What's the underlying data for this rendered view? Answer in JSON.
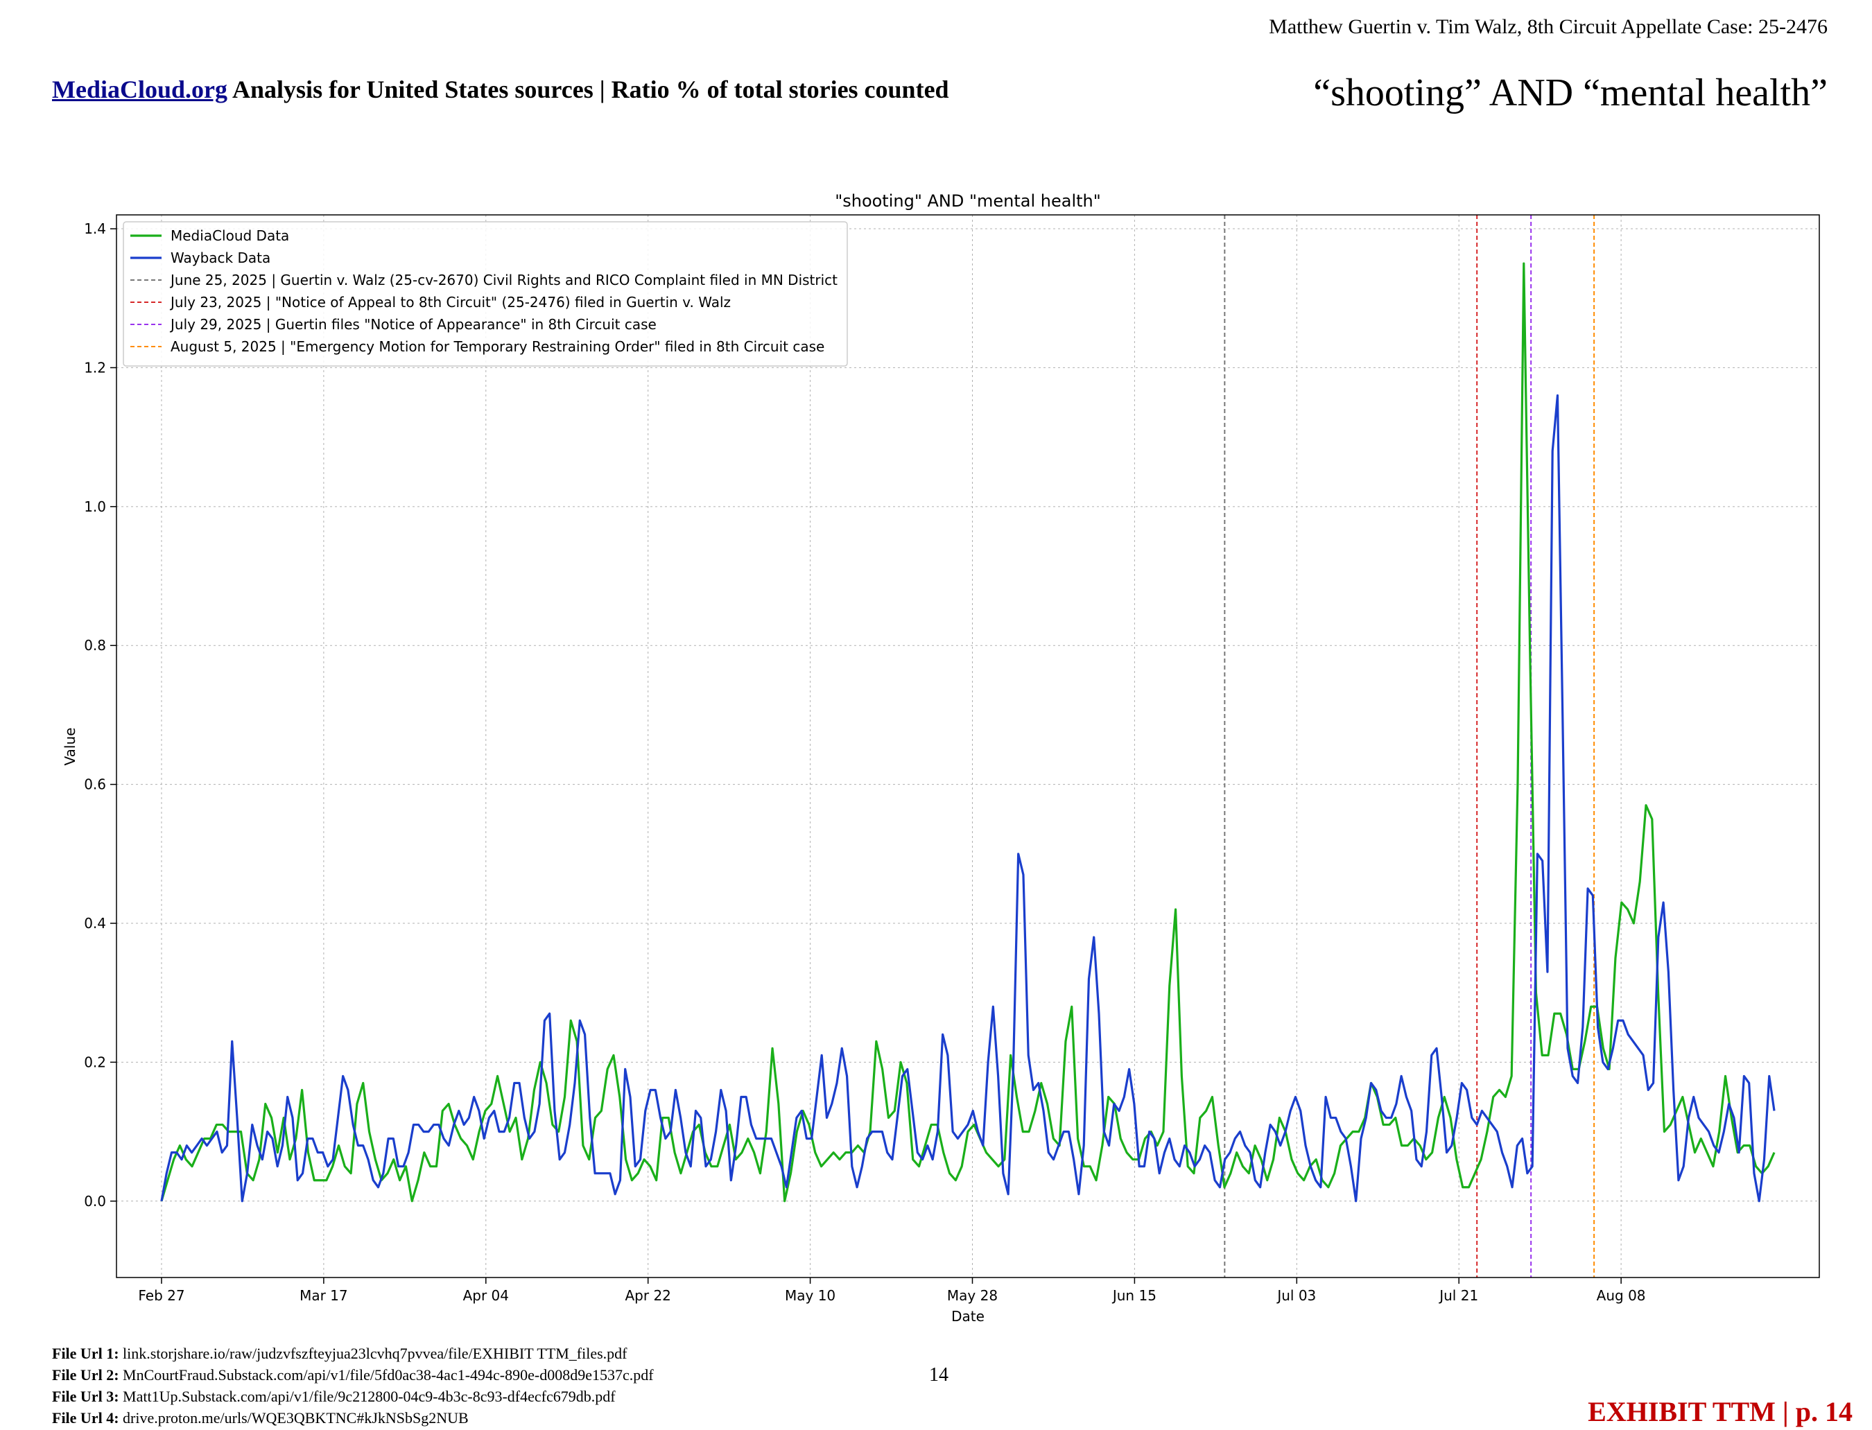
{
  "header": {
    "case_caption": "Matthew Guertin v. Tim Walz, 8th Circuit Appellate Case: 25-2476",
    "title_link": "MediaCloud.org",
    "title_rest": " Analysis for United States sources | Ratio % of total stories counted",
    "query_title": "“shooting” AND “mental health”"
  },
  "footer": {
    "file_urls": [
      {
        "label": "File Url 1:",
        "value": " link.storjshare.io/raw/judzvfszfteyjua23lcvhq7pvvea/file/EXHIBIT TTM_files.pdf"
      },
      {
        "label": "File Url 2:",
        "value": " MnCourtFraud.Substack.com/api/v1/file/5fd0ac38-4ac1-494c-890e-d008d9e1537c.pdf"
      },
      {
        "label": "File Url 3:",
        "value": " Matt1Up.Substack.com/api/v1/file/9c212800-04c9-4b3c-8c93-df4ecfc679db.pdf"
      },
      {
        "label": "File Url 4:",
        "value": " drive.proton.me/urls/WQE3QBKTNC#kJkNSbSg2NUB"
      }
    ],
    "page_number": "14",
    "exhibit_label": "EXHIBIT TTM | p. 14"
  },
  "chart_data": {
    "type": "line",
    "title": "\"shooting\" AND \"mental health\"",
    "xlabel": "Date",
    "ylabel": "Value",
    "x_start": "2025-02-27",
    "x_end": "2025-08-25",
    "xlim": [
      "2025-02-22",
      "2025-08-30"
    ],
    "ylim": [
      -0.11,
      1.42
    ],
    "x_ticks": [
      {
        "date": "2025-02-27",
        "label": "Feb 27"
      },
      {
        "date": "2025-03-17",
        "label": "Mar 17"
      },
      {
        "date": "2025-04-04",
        "label": "Apr 04"
      },
      {
        "date": "2025-04-22",
        "label": "Apr 22"
      },
      {
        "date": "2025-05-10",
        "label": "May 10"
      },
      {
        "date": "2025-05-28",
        "label": "May 28"
      },
      {
        "date": "2025-06-15",
        "label": "Jun 15"
      },
      {
        "date": "2025-07-03",
        "label": "Jul 03"
      },
      {
        "date": "2025-07-21",
        "label": "Jul 21"
      },
      {
        "date": "2025-08-08",
        "label": "Aug 08"
      }
    ],
    "y_ticks": [
      {
        "value": 0.0,
        "label": "0.0"
      },
      {
        "value": 0.2,
        "label": "0.2"
      },
      {
        "value": 0.4,
        "label": "0.4"
      },
      {
        "value": 0.6,
        "label": "0.6"
      },
      {
        "value": 0.8,
        "label": "0.8"
      },
      {
        "value": 1.0,
        "label": "1.0"
      },
      {
        "value": 1.2,
        "label": "1.2"
      },
      {
        "value": 1.4,
        "label": "1.4"
      }
    ],
    "grid": true,
    "legend_position": "top-left",
    "series": [
      {
        "name": "MediaCloud Data",
        "color": "#1aaf1a",
        "values": [
          0.0,
          0.03,
          0.06,
          0.08,
          0.06,
          0.05,
          0.07,
          0.09,
          0.09,
          0.11,
          0.11,
          0.1,
          0.1,
          0.1,
          0.04,
          0.03,
          0.06,
          0.14,
          0.12,
          0.07,
          0.12,
          0.06,
          0.09,
          0.16,
          0.07,
          0.03,
          0.03,
          0.03,
          0.05,
          0.08,
          0.05,
          0.04,
          0.14,
          0.17,
          0.1,
          0.06,
          0.03,
          0.04,
          0.06,
          0.03,
          0.05,
          0.0,
          0.03,
          0.07,
          0.05,
          0.05,
          0.13,
          0.14,
          0.11,
          0.09,
          0.08,
          0.06,
          0.1,
          0.13,
          0.14,
          0.18,
          0.14,
          0.1,
          0.12,
          0.06,
          0.09,
          0.16,
          0.2,
          0.17,
          0.11,
          0.1,
          0.15,
          0.26,
          0.23,
          0.08,
          0.06,
          0.12,
          0.13,
          0.19,
          0.21,
          0.15,
          0.06,
          0.03,
          0.04,
          0.06,
          0.05,
          0.03,
          0.12,
          0.12,
          0.07,
          0.04,
          0.07,
          0.1,
          0.11,
          0.07,
          0.05,
          0.05,
          0.08,
          0.11,
          0.06,
          0.07,
          0.09,
          0.07,
          0.04,
          0.1,
          0.22,
          0.14,
          0.0,
          0.04,
          0.1,
          0.13,
          0.11,
          0.07,
          0.05,
          0.06,
          0.07,
          0.06,
          0.07,
          0.07,
          0.08,
          0.07,
          0.1,
          0.23,
          0.19,
          0.12,
          0.13,
          0.2,
          0.17,
          0.06,
          0.05,
          0.08,
          0.11,
          0.11,
          0.07,
          0.04,
          0.03,
          0.05,
          0.1,
          0.11,
          0.09,
          0.07,
          0.06,
          0.05,
          0.06,
          0.21,
          0.15,
          0.1,
          0.1,
          0.13,
          0.17,
          0.14,
          0.09,
          0.08,
          0.23,
          0.28,
          0.09,
          0.05,
          0.05,
          0.03,
          0.08,
          0.15,
          0.14,
          0.09,
          0.07,
          0.06,
          0.06,
          0.09,
          0.1,
          0.08,
          0.1,
          0.31,
          0.42,
          0.18,
          0.05,
          0.04,
          0.12,
          0.13,
          0.15,
          0.08,
          0.02,
          0.04,
          0.07,
          0.05,
          0.04,
          0.08,
          0.06,
          0.03,
          0.06,
          0.12,
          0.1,
          0.06,
          0.04,
          0.03,
          0.05,
          0.06,
          0.03,
          0.02,
          0.04,
          0.08,
          0.09,
          0.1,
          0.1,
          0.12,
          0.17,
          0.15,
          0.11,
          0.11,
          0.12,
          0.08,
          0.08,
          0.09,
          0.08,
          0.06,
          0.07,
          0.12,
          0.15,
          0.12,
          0.06,
          0.02,
          0.02,
          0.04,
          0.06,
          0.1,
          0.15,
          0.16,
          0.15,
          0.18,
          0.6,
          1.35,
          0.8,
          0.3,
          0.21,
          0.21,
          0.27,
          0.27,
          0.24,
          0.19,
          0.19,
          0.23,
          0.28,
          0.28,
          0.22,
          0.19,
          0.35,
          0.43,
          0.42,
          0.4,
          0.46,
          0.57,
          0.55,
          0.3,
          0.1,
          0.11,
          0.13,
          0.15,
          0.11,
          0.07,
          0.09,
          0.07,
          0.05,
          0.1,
          0.18,
          0.12,
          0.07,
          0.08,
          0.08,
          0.05,
          0.04,
          0.05,
          0.07
        ]
      },
      {
        "name": "Wayback Data",
        "color": "#1a3ecc",
        "values": [
          0.0,
          0.04,
          0.07,
          0.07,
          0.06,
          0.08,
          0.07,
          0.08,
          0.09,
          0.08,
          0.09,
          0.1,
          0.07,
          0.08,
          0.23,
          0.12,
          0.0,
          0.04,
          0.11,
          0.08,
          0.06,
          0.1,
          0.09,
          0.05,
          0.08,
          0.15,
          0.12,
          0.03,
          0.04,
          0.09,
          0.09,
          0.07,
          0.07,
          0.05,
          0.06,
          0.12,
          0.18,
          0.16,
          0.11,
          0.08,
          0.08,
          0.06,
          0.03,
          0.02,
          0.04,
          0.09,
          0.09,
          0.05,
          0.05,
          0.07,
          0.11,
          0.11,
          0.1,
          0.1,
          0.11,
          0.11,
          0.09,
          0.08,
          0.11,
          0.13,
          0.11,
          0.12,
          0.15,
          0.13,
          0.09,
          0.12,
          0.13,
          0.1,
          0.1,
          0.12,
          0.17,
          0.17,
          0.12,
          0.09,
          0.1,
          0.14,
          0.26,
          0.27,
          0.13,
          0.06,
          0.07,
          0.11,
          0.17,
          0.26,
          0.24,
          0.12,
          0.04,
          0.04,
          0.04,
          0.04,
          0.01,
          0.03,
          0.19,
          0.15,
          0.05,
          0.06,
          0.13,
          0.16,
          0.16,
          0.12,
          0.09,
          0.1,
          0.16,
          0.12,
          0.07,
          0.05,
          0.13,
          0.12,
          0.05,
          0.06,
          0.1,
          0.16,
          0.13,
          0.03,
          0.08,
          0.15,
          0.15,
          0.11,
          0.09,
          0.09,
          0.09,
          0.09,
          0.07,
          0.05,
          0.02,
          0.07,
          0.12,
          0.13,
          0.09,
          0.09,
          0.15,
          0.21,
          0.12,
          0.14,
          0.17,
          0.22,
          0.18,
          0.05,
          0.02,
          0.05,
          0.09,
          0.1,
          0.1,
          0.1,
          0.07,
          0.06,
          0.12,
          0.18,
          0.19,
          0.13,
          0.07,
          0.06,
          0.08,
          0.06,
          0.1,
          0.24,
          0.21,
          0.1,
          0.09,
          0.1,
          0.11,
          0.13,
          0.1,
          0.08,
          0.2,
          0.28,
          0.18,
          0.04,
          0.01,
          0.19,
          0.5,
          0.47,
          0.21,
          0.16,
          0.17,
          0.13,
          0.07,
          0.06,
          0.08,
          0.1,
          0.1,
          0.06,
          0.01,
          0.08,
          0.32,
          0.38,
          0.27,
          0.1,
          0.08,
          0.14,
          0.13,
          0.15,
          0.19,
          0.14,
          0.05,
          0.05,
          0.1,
          0.09,
          0.04,
          0.07,
          0.09,
          0.06,
          0.05,
          0.08,
          0.07,
          0.05,
          0.06,
          0.08,
          0.07,
          0.03,
          0.02,
          0.06,
          0.07,
          0.09,
          0.1,
          0.08,
          0.07,
          0.03,
          0.02,
          0.07,
          0.11,
          0.1,
          0.08,
          0.1,
          0.13,
          0.15,
          0.13,
          0.08,
          0.05,
          0.03,
          0.02,
          0.15,
          0.12,
          0.12,
          0.1,
          0.09,
          0.05,
          0.0,
          0.09,
          0.12,
          0.17,
          0.16,
          0.13,
          0.12,
          0.12,
          0.14,
          0.18,
          0.15,
          0.13,
          0.06,
          0.05,
          0.1,
          0.21,
          0.22,
          0.15,
          0.07,
          0.08,
          0.12,
          0.17,
          0.16,
          0.12,
          0.11,
          0.13,
          0.12,
          0.11,
          0.1,
          0.07,
          0.05,
          0.02,
          0.08,
          0.09,
          0.04,
          0.05,
          0.5,
          0.49,
          0.33,
          1.08,
          1.16,
          0.7,
          0.22,
          0.18,
          0.17,
          0.25,
          0.45,
          0.44,
          0.25,
          0.2,
          0.19,
          0.22,
          0.26,
          0.26,
          0.24,
          0.23,
          0.22,
          0.21,
          0.16,
          0.17,
          0.38,
          0.43,
          0.33,
          0.16,
          0.03,
          0.05,
          0.12,
          0.15,
          0.12,
          0.11,
          0.1,
          0.08,
          0.07,
          0.1,
          0.14,
          0.12,
          0.07,
          0.18,
          0.17,
          0.04,
          0.0,
          0.06,
          0.18,
          0.13
        ]
      }
    ],
    "vlines": [
      {
        "date": "2025-06-25",
        "color": "#777777",
        "label": "June 25, 2025 | Guertin v. Walz (25-cv-2670) Civil Rights and RICO Complaint filed in MN District"
      },
      {
        "date": "2025-07-23",
        "color": "#d62728",
        "label": "July 23, 2025 | \"Notice of Appeal to 8th Circuit\" (25-2476) filed in Guertin v. Walz"
      },
      {
        "date": "2025-07-29",
        "color": "#9933ee",
        "label": "July 29, 2025 | Guertin files \"Notice of Appearance\" in 8th Circuit case"
      },
      {
        "date": "2025-08-05",
        "color": "#ff8c00",
        "label": "August 5, 2025 | \"Emergency Motion for Temporary Restraining Order\" filed in 8th Circuit case"
      }
    ]
  }
}
